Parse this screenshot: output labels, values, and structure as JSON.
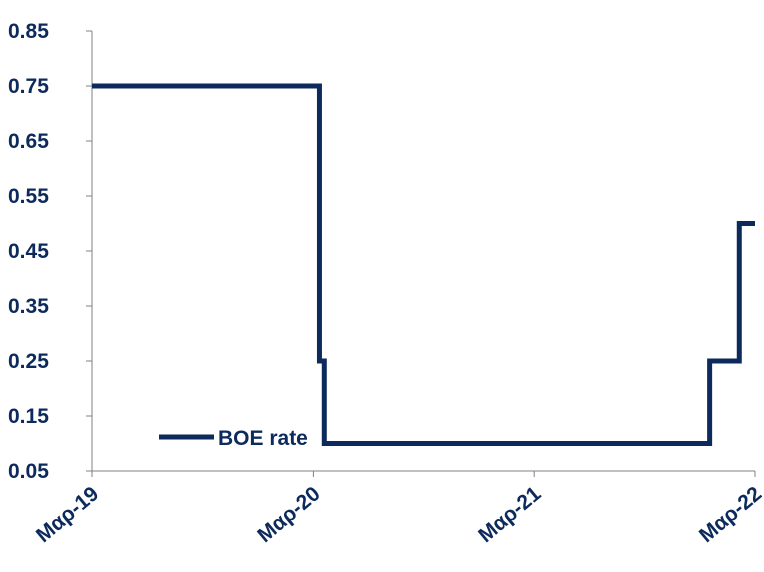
{
  "chart_data": {
    "type": "line",
    "line_style": "step",
    "color": "#0d2a5c",
    "ylim": [
      0.05,
      0.85
    ],
    "yticks": [
      "0.85",
      "0.75",
      "0.65",
      "0.55",
      "0.45",
      "0.35",
      "0.25",
      "0.15",
      "0.05"
    ],
    "x_ticks": [
      {
        "date": "2019-03-01",
        "label": "Μαρ-19"
      },
      {
        "date": "2020-03-01",
        "label": "Μαρ-20"
      },
      {
        "date": "2021-03-01",
        "label": "Μαρ-21"
      },
      {
        "date": "2022-03-01",
        "label": "Μαρ-22"
      }
    ],
    "xlim": [
      "2019-03-01",
      "2022-03-01"
    ],
    "legend": {
      "position": "bottom-left"
    },
    "series": [
      {
        "name": "BOE rate",
        "points": [
          {
            "x": "2019-03-01",
            "y": 0.75
          },
          {
            "x": "2020-03-11",
            "y": 0.25
          },
          {
            "x": "2020-03-19",
            "y": 0.1
          },
          {
            "x": "2021-12-16",
            "y": 0.25
          },
          {
            "x": "2022-02-03",
            "y": 0.5
          },
          {
            "x": "2022-03-01",
            "y": 0.5
          }
        ]
      }
    ]
  }
}
